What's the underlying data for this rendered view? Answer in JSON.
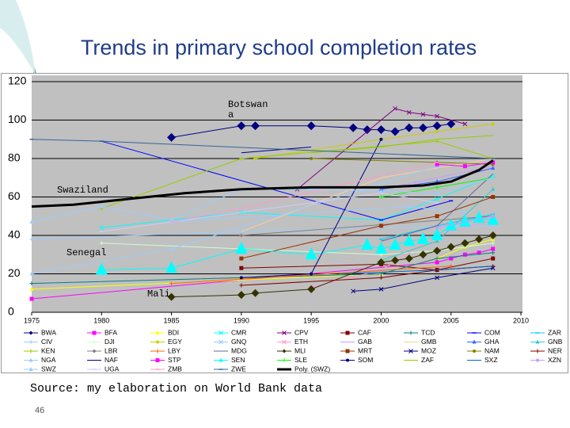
{
  "chart_data": {
    "type": "scatter",
    "title": "Trends in primary school completion rates",
    "xlim": [
      1975,
      2010
    ],
    "xticks": [
      1975,
      1980,
      1985,
      1990,
      1995,
      2000,
      2005,
      2010
    ],
    "ylim": [
      0,
      120
    ],
    "yticks": [
      0,
      20,
      40,
      60,
      80,
      100,
      120
    ],
    "grid": true,
    "plot_color": "#c0c0c0",
    "annotations": [
      "Botswan a",
      "Swaziland",
      "Senegal",
      "Mali"
    ],
    "series": [
      {
        "name": "BWA",
        "color": "#000080",
        "marker": "diamond",
        "size": 11,
        "x": [
          1985,
          1990,
          1991,
          1995,
          1998,
          1999,
          2000,
          2001,
          2002,
          2003,
          2004,
          2005
        ],
        "values": [
          91,
          97,
          97,
          97,
          96,
          95,
          95,
          94,
          96,
          96,
          97,
          98
        ]
      },
      {
        "name": "BFA",
        "color": "#ff00ff",
        "marker": "square",
        "x": [
          1975,
          2004,
          2005,
          2006,
          2007,
          2008
        ],
        "values": [
          7,
          26,
          28,
          30,
          31,
          33
        ]
      },
      {
        "name": "BDI",
        "color": "#ffff00",
        "marker": "triangle",
        "x": [
          1975,
          2000,
          2004,
          2006,
          2008
        ],
        "values": [
          12,
          20,
          28,
          34,
          38
        ]
      },
      {
        "name": "CMR",
        "color": "#00ffff",
        "marker": "x",
        "x": [
          1980,
          1990,
          2000,
          2004,
          2008
        ],
        "values": [
          44,
          52,
          48,
          59,
          71
        ]
      },
      {
        "name": "CPV",
        "color": "#800080",
        "marker": "x",
        "x": [
          1994,
          2001,
          2002,
          2003,
          2004,
          2006
        ],
        "values": [
          64,
          106,
          104,
          103,
          102,
          98
        ]
      },
      {
        "name": "CAF",
        "color": "#800000",
        "marker": "square",
        "x": [
          1990,
          2000,
          2004,
          2008
        ],
        "values": [
          23,
          25,
          22,
          28
        ]
      },
      {
        "name": "TCD",
        "color": "#008080",
        "marker": "plus",
        "x": [
          1975,
          2000,
          2004,
          2008
        ],
        "values": [
          15,
          20,
          28,
          31
        ]
      },
      {
        "name": "COM",
        "color": "#0000ff",
        "marker": "dash",
        "x": [
          1980,
          2000,
          2005
        ],
        "values": [
          89,
          48,
          58
        ]
      },
      {
        "name": "ZAR",
        "color": "#00ccff",
        "marker": "dash",
        "x": [
          2000,
          2004,
          2008
        ],
        "values": [
          38,
          45,
          51
        ]
      },
      {
        "name": "CIV",
        "color": "#99ccff",
        "marker": "plus",
        "x": [
          1975,
          1990,
          2000,
          2008
        ],
        "values": [
          38,
          42,
          44,
          45
        ]
      },
      {
        "name": "DJI",
        "color": "#ccffcc",
        "marker": "plus",
        "x": [
          1980,
          2000,
          2004,
          2008
        ],
        "values": [
          36,
          30,
          32,
          36
        ]
      },
      {
        "name": "EGY",
        "color": "#cccc00",
        "marker": "diamond",
        "x": [
          1991,
          2000,
          2004,
          2008
        ],
        "values": [
          80,
          90,
          94,
          98
        ]
      },
      {
        "name": "GNQ",
        "color": "#99ccff",
        "marker": "x",
        "x": [
          1985,
          2002,
          2006
        ],
        "values": [
          47,
          55,
          52
        ]
      },
      {
        "name": "ETH",
        "color": "#ff99cc",
        "marker": "x",
        "x": [
          1995,
          2000,
          2004,
          2008
        ],
        "values": [
          13,
          22,
          40,
          48
        ]
      },
      {
        "name": "GAB",
        "color": "#cc99ff",
        "marker": "line",
        "x": [
          2000,
          2004,
          2008
        ],
        "values": [
          64,
          70,
          76
        ]
      },
      {
        "name": "GMB",
        "color": "#ffcc99",
        "marker": "line",
        "x": [
          1990,
          2000,
          2004,
          2008
        ],
        "values": [
          42,
          70,
          75,
          80
        ]
      },
      {
        "name": "GHA",
        "color": "#3366ff",
        "marker": "triangle",
        "x": [
          2000,
          2004,
          2008
        ],
        "values": [
          64,
          68,
          75
        ]
      },
      {
        "name": "GNB",
        "color": "#33cccc",
        "marker": "triangle",
        "x": [
          2000,
          2004,
          2008
        ],
        "values": [
          27,
          37,
          64
        ]
      },
      {
        "name": "KEN",
        "color": "#99cc00",
        "marker": "plus",
        "x": [
          1980,
          1990,
          2004,
          2008
        ],
        "values": [
          54,
          80,
          89,
          80
        ]
      },
      {
        "name": "LBR",
        "color": "#808080",
        "marker": "diamond",
        "x": [
          1990,
          2008
        ],
        "values": [
          40,
          50
        ]
      },
      {
        "name": "LBY",
        "color": "#ff6600",
        "marker": "plus",
        "x": [
          1985,
          2005
        ],
        "values": [
          15,
          24
        ]
      },
      {
        "name": "MDG",
        "color": "#666699",
        "marker": "line",
        "x": [
          2000,
          2004,
          2008
        ],
        "values": [
          37,
          45,
          72
        ]
      },
      {
        "name": "MLI",
        "color": "#333300",
        "marker": "diamond",
        "size": 10,
        "x": [
          1985,
          1990,
          1991,
          1995,
          2000,
          2001,
          2002,
          2003,
          2004,
          2005,
          2006,
          2007,
          2008
        ],
        "values": [
          8,
          9,
          10,
          12,
          26,
          27,
          28,
          30,
          32,
          34,
          36,
          38,
          40
        ]
      },
      {
        "name": "MRT",
        "color": "#993300",
        "marker": "square",
        "x": [
          1990,
          2000,
          2004,
          2008
        ],
        "values": [
          28,
          45,
          50,
          60
        ]
      },
      {
        "name": "MOZ",
        "color": "#000080",
        "marker": "x",
        "x": [
          1998,
          2000,
          2004,
          2008
        ],
        "values": [
          11,
          12,
          18,
          23
        ]
      },
      {
        "name": "NAM",
        "color": "#808000",
        "marker": "circle",
        "x": [
          1995,
          2004,
          2008
        ],
        "values": [
          80,
          78,
          77
        ]
      },
      {
        "name": "NER",
        "color": "#800000",
        "marker": "plus",
        "x": [
          1990,
          2000,
          2004,
          2008
        ],
        "values": [
          14,
          18,
          22,
          24
        ]
      },
      {
        "name": "NGA",
        "color": "#99ccff",
        "marker": "triangle",
        "x": [
          1975,
          1985,
          2004
        ],
        "values": [
          20,
          33,
          76
        ]
      },
      {
        "name": "NAF",
        "color": "#000080",
        "marker": "line",
        "x": [
          1990,
          1995
        ],
        "values": [
          83,
          86
        ]
      },
      {
        "name": "STP",
        "color": "#ff00ff",
        "marker": "square",
        "x": [
          2004,
          2006,
          2008
        ],
        "values": [
          77,
          76,
          78
        ]
      },
      {
        "name": "SEN",
        "color": "#00ffff",
        "marker": "triangle",
        "size": 15,
        "x": [
          1980,
          1985,
          1990,
          1995,
          1999,
          2000,
          2001,
          2002,
          2003,
          2004,
          2005,
          2006,
          2007,
          2008
        ],
        "values": [
          22,
          23,
          33,
          30,
          35,
          33,
          35,
          37,
          38,
          40,
          45,
          47,
          49,
          48
        ]
      },
      {
        "name": "SLE",
        "color": "#00ff00",
        "marker": "plus",
        "x": [
          2000,
          2004,
          2008
        ],
        "values": [
          60,
          65,
          70
        ]
      },
      {
        "name": "SOM",
        "color": "#000080",
        "marker": "circle",
        "x": [
          1990,
          1995,
          2000
        ],
        "values": [
          18,
          20,
          90
        ]
      },
      {
        "name": "ZAF",
        "color": "#99cc00",
        "marker": "line",
        "x": [
          1995,
          2000,
          2004,
          2008
        ],
        "values": [
          83,
          86,
          90,
          92
        ]
      },
      {
        "name": "SXZ",
        "color": "#0066cc",
        "marker": "line",
        "x": [
          1997,
          2004,
          2008
        ],
        "values": [
          20,
          22,
          24
        ]
      },
      {
        "name": "XZN",
        "color": "#cc99ff",
        "marker": "circle",
        "x": [
          2004,
          2008
        ],
        "values": [
          44,
          50
        ]
      },
      {
        "name": "SWZ",
        "color": "#99ccff",
        "marker": "triangle",
        "x": [
          1975,
          1980,
          1985,
          1990,
          1995,
          2000,
          2004,
          2008
        ],
        "values": [
          47,
          55,
          48,
          64,
          64,
          63,
          62,
          70
        ]
      },
      {
        "name": "UGA",
        "color": "#ccccff",
        "marker": "dash",
        "x": [
          1980,
          2000,
          2004
        ],
        "values": [
          42,
          62,
          57
        ]
      },
      {
        "name": "ZMB",
        "color": "#ff99cc",
        "marker": "dash",
        "x": [
          1985,
          1990,
          2004
        ],
        "values": [
          47,
          54,
          78
        ]
      },
      {
        "name": "ZWE",
        "color": "#336699",
        "marker": "dash",
        "x": [
          1975,
          1980,
          2008
        ],
        "values": [
          90,
          89,
          80
        ]
      },
      {
        "name": "Poly. (SWZ)",
        "color": "#000000",
        "marker": "trend",
        "x": [
          1975,
          1978,
          1982,
          1986,
          1990,
          1995,
          2000,
          2003,
          2005,
          2007,
          2008
        ],
        "values": [
          55,
          56,
          59,
          62,
          64,
          65,
          65,
          66,
          68,
          74,
          79
        ]
      }
    ]
  },
  "source": "Source: my elaboration on World Bank data",
  "page_number": 46
}
